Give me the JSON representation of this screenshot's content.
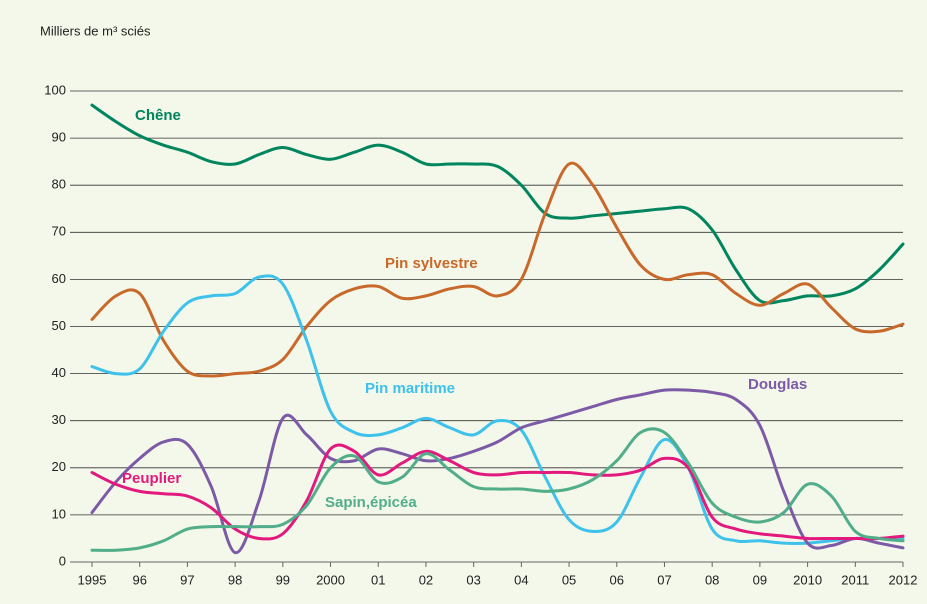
{
  "chart_data": {
    "type": "line",
    "y_label": "Milliers de m³ sciés",
    "x": [
      1995,
      1995.5,
      1996,
      1996.5,
      1997,
      1997.5,
      1998,
      1998.5,
      1999,
      1999.5,
      2000,
      2000.5,
      2001,
      2001.5,
      2002,
      2002.5,
      2003,
      2003.5,
      2004,
      2004.5,
      2005,
      2005.5,
      2006,
      2006.5,
      2007,
      2007.5,
      2008,
      2008.5,
      2009,
      2009.5,
      2010,
      2010.5,
      2011,
      2011.5,
      2012
    ],
    "xlim": [
      1995,
      2012
    ],
    "xticks": [
      1995,
      {
        "value": 1996,
        "label": "96"
      },
      {
        "value": 1997,
        "label": "97"
      },
      {
        "value": 1998,
        "label": "98"
      },
      {
        "value": 1999,
        "label": "99"
      },
      2000,
      {
        "value": 2001,
        "label": "01"
      },
      {
        "value": 2002,
        "label": "02"
      },
      {
        "value": 2003,
        "label": "03"
      },
      {
        "value": 2004,
        "label": "04"
      },
      {
        "value": 2005,
        "label": "05"
      },
      {
        "value": 2006,
        "label": "06"
      },
      {
        "value": 2007,
        "label": "07"
      },
      {
        "value": 2008,
        "label": "08"
      },
      {
        "value": 2009,
        "label": "09"
      },
      2010,
      2011,
      2012
    ],
    "ylim": [
      0,
      100
    ],
    "yticks": [
      0,
      10,
      20,
      30,
      40,
      50,
      60,
      70,
      80,
      90,
      100
    ],
    "grid": true,
    "series": [
      {
        "name": "Chêne",
        "color": "#00855e",
        "values": [
          97,
          93.5,
          90.5,
          88.5,
          87,
          85,
          84.5,
          86.5,
          88,
          86.5,
          85.5,
          87,
          88.5,
          87,
          84.5,
          84.5,
          84.5,
          84,
          80,
          74,
          73,
          73.5,
          74,
          74.5,
          75,
          75,
          70.5,
          62,
          55.5,
          55.5,
          56.5,
          56.5,
          58,
          62,
          67.5
        ]
      },
      {
        "name": "Pin sylvestre",
        "color": "#c8692b",
        "values": [
          51.5,
          56.5,
          57,
          47,
          40.5,
          39.5,
          40,
          40.5,
          43,
          50,
          55.5,
          58,
          58.5,
          56,
          56.5,
          58,
          58.5,
          56.5,
          60,
          74,
          84.5,
          80,
          71,
          63,
          60,
          61,
          61,
          57,
          54.5,
          57,
          59,
          54,
          49.5,
          49,
          50.5
        ]
      },
      {
        "name": "Pin maritime",
        "color": "#3ec1ea",
        "values": [
          41.5,
          40,
          41,
          49,
          55,
          56.5,
          57,
          60.5,
          59,
          47,
          32,
          27.5,
          27,
          28.5,
          30.5,
          28.5,
          27,
          30,
          28,
          18,
          9,
          6.5,
          8.5,
          18,
          26,
          20,
          7,
          4.5,
          4.5,
          4,
          4,
          4.5,
          5,
          5,
          5
        ]
      },
      {
        "name": "Douglas",
        "color": "#7c5aa6",
        "values": [
          10.5,
          17,
          22,
          25.5,
          25,
          16,
          2,
          13,
          30.5,
          27,
          22,
          21.5,
          24,
          23,
          21.5,
          22,
          23.5,
          25.5,
          28.5,
          30,
          31.5,
          33,
          34.5,
          35.5,
          36.5,
          36.5,
          36,
          34.5,
          29,
          15,
          4,
          3.5,
          5,
          4,
          3
        ]
      },
      {
        "name": "Peuplier",
        "color": "#e3197d",
        "values": [
          19,
          16.5,
          15,
          14.5,
          14,
          11.5,
          7,
          5,
          6,
          13,
          24,
          23.5,
          18.5,
          21,
          23.5,
          21.5,
          19,
          18.5,
          19,
          19,
          19,
          18.5,
          18.5,
          19.5,
          22,
          20,
          9.5,
          7,
          6,
          5.5,
          5,
          5,
          5,
          5,
          5.5
        ]
      },
      {
        "name": "Sapin,épicéa",
        "color": "#52ad8a",
        "values": [
          2.5,
          2.5,
          3,
          4.5,
          7,
          7.5,
          7.5,
          7.5,
          8,
          12,
          20,
          22.5,
          17,
          18,
          23,
          19.5,
          16,
          15.5,
          15.5,
          15,
          15.5,
          17.5,
          21.5,
          27.5,
          27.5,
          21,
          12.5,
          9.5,
          8.5,
          10.5,
          16.5,
          14,
          6.5,
          5,
          4.5
        ]
      }
    ]
  }
}
